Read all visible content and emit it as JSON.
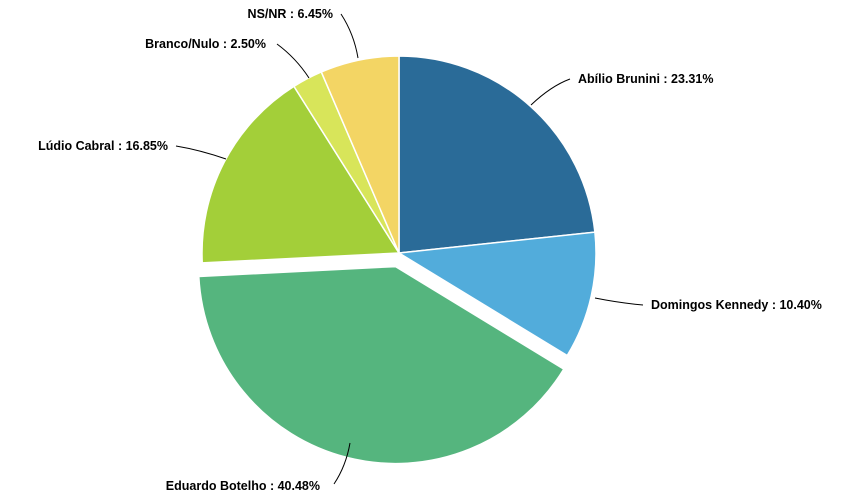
{
  "chart_data": {
    "type": "pie",
    "categories": [
      "Abílio Brunini",
      "Domingos Kennedy",
      "Eduardo Botelho",
      "Lúdio Cabral",
      "Branco/Nulo",
      "NS/NR"
    ],
    "values": [
      23.31,
      10.4,
      40.48,
      16.85,
      2.5,
      6.45
    ],
    "labels": [
      "Abílio Brunini : 23.31%",
      "Domingos Kennedy : 10.40%",
      "Eduardo Botelho : 40.48%",
      "Lúdio Cabral : 16.85%",
      "Branco/Nulo : 2.50%",
      "NS/NR : 6.45%"
    ],
    "colors": [
      "#2a6b98",
      "#52acdb",
      "#55b57e",
      "#a3cf39",
      "#d8e55a",
      "#f3d564"
    ],
    "exploded": "Eduardo Botelho",
    "title": ""
  }
}
